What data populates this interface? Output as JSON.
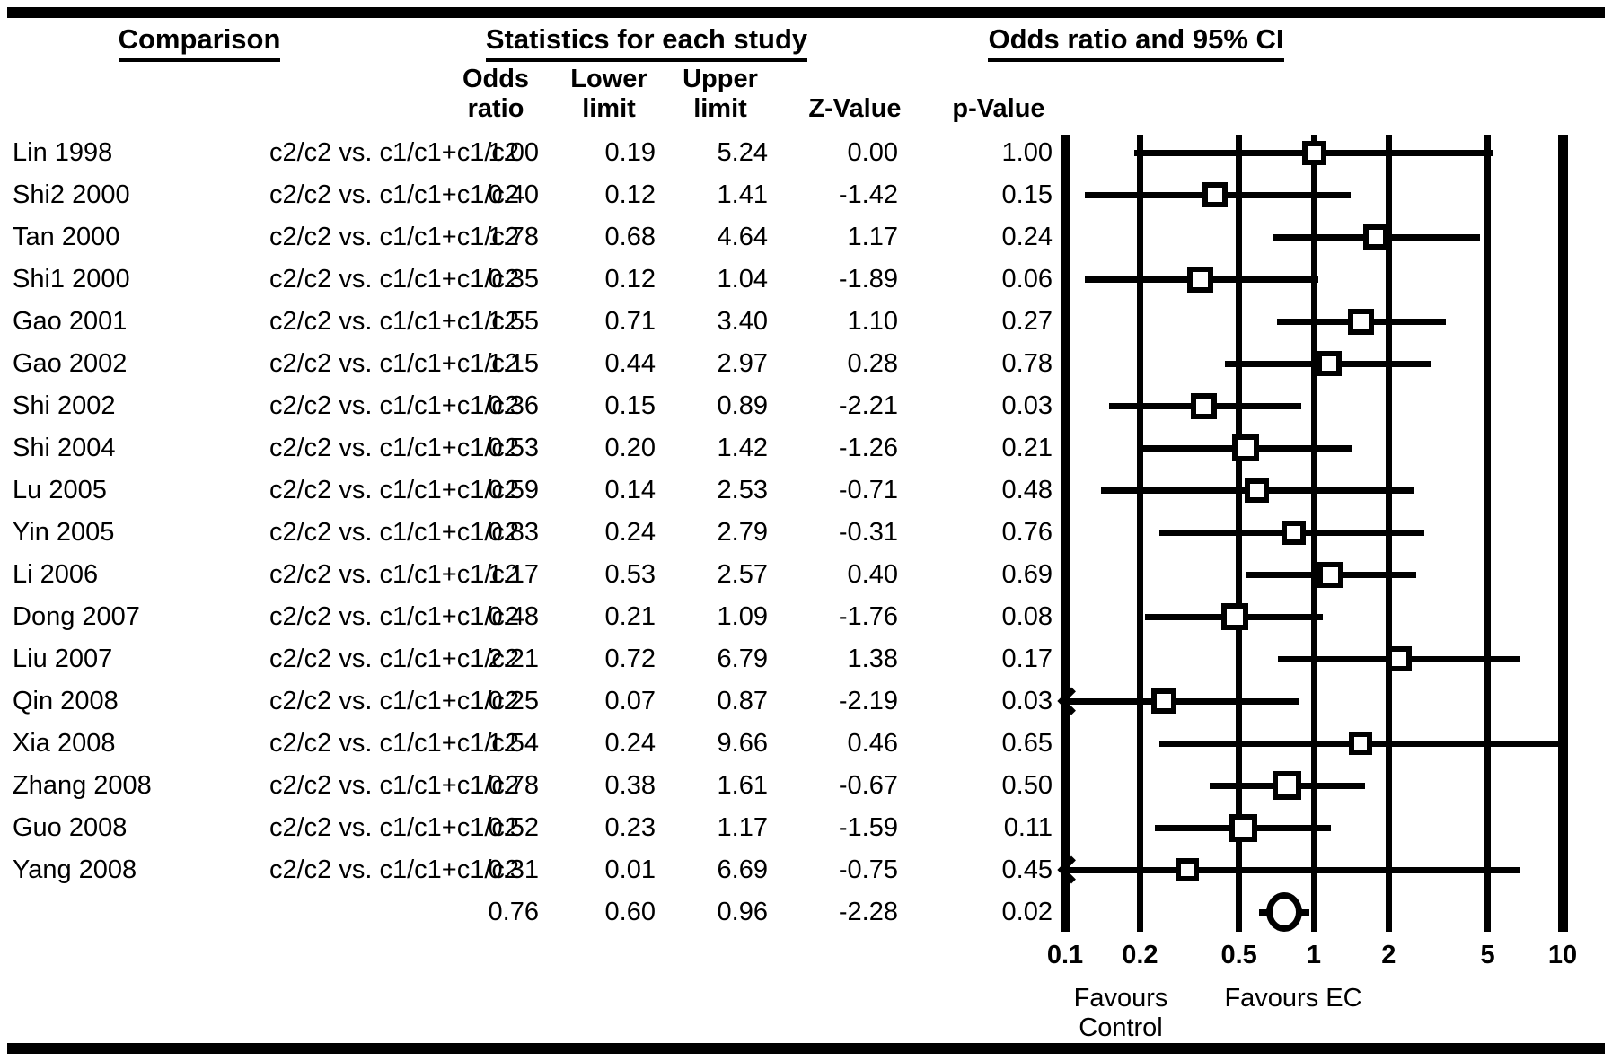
{
  "header": {
    "comparison_title": "Comparison",
    "statistics_title": "Statistics for each study",
    "plot_title": "Odds ratio and 95% CI",
    "columns": {
      "odds_l1": "Odds",
      "odds_l2": "ratio",
      "lower_l1": "Lower",
      "lower_l2": "limit",
      "upper_l1": "Upper",
      "upper_l2": "limit",
      "z": "Z-Value",
      "p": "p-Value"
    }
  },
  "chart_data": {
    "type": "forest",
    "x_axis": {
      "scale": "log10",
      "range": [
        0.1,
        10
      ],
      "tick_labels": [
        "0.1",
        "0.2",
        "0.5",
        "1",
        "2",
        "5",
        "10"
      ]
    },
    "studies": [
      {
        "label": "Lin 1998",
        "comparison": "c2/c2 vs. c1/c1+c1/c2",
        "or": "1.00",
        "lower": "0.19",
        "upper": "5.24",
        "z": "0.00",
        "p": "1.00",
        "marker_size": 27
      },
      {
        "label": "Shi2 2000",
        "comparison": "c2/c2 vs. c1/c1+c1/c2",
        "or": "0.40",
        "lower": "0.12",
        "upper": "1.41",
        "z": "-1.42",
        "p": "0.15",
        "marker_size": 28
      },
      {
        "label": "Tan 2000",
        "comparison": "c2/c2 vs. c1/c1+c1/c2",
        "or": "1.78",
        "lower": "0.68",
        "upper": "4.64",
        "z": "1.17",
        "p": "0.24",
        "marker_size": 28
      },
      {
        "label": "Shi1 2000",
        "comparison": "c2/c2 vs. c1/c1+c1/c2",
        "or": "0.35",
        "lower": "0.12",
        "upper": "1.04",
        "z": "-1.89",
        "p": "0.06",
        "marker_size": 29
      },
      {
        "label": "Gao 2001",
        "comparison": "c2/c2 vs. c1/c1+c1/c2",
        "or": "1.55",
        "lower": "0.71",
        "upper": "3.40",
        "z": "1.10",
        "p": "0.27",
        "marker_size": 29
      },
      {
        "label": "Gao 2002",
        "comparison": "c2/c2 vs. c1/c1+c1/c2",
        "or": "1.15",
        "lower": "0.44",
        "upper": "2.97",
        "z": "0.28",
        "p": "0.78",
        "marker_size": 28
      },
      {
        "label": "Shi 2002",
        "comparison": "c2/c2 vs. c1/c1+c1/c2",
        "or": "0.36",
        "lower": "0.15",
        "upper": "0.89",
        "z": "-2.21",
        "p": "0.03",
        "marker_size": 29
      },
      {
        "label": "Shi 2004",
        "comparison": "c2/c2 vs. c1/c1+c1/c2",
        "or": "0.53",
        "lower": "0.20",
        "upper": "1.42",
        "z": "-1.26",
        "p": "0.21",
        "marker_size": 30
      },
      {
        "label": "Lu 2005",
        "comparison": "c2/c2 vs. c1/c1+c1/c2",
        "or": "0.59",
        "lower": "0.14",
        "upper": "2.53",
        "z": "-0.71",
        "p": "0.48",
        "marker_size": 27
      },
      {
        "label": "Yin 2005",
        "comparison": "c2/c2 vs. c1/c1+c1/c2",
        "or": "0.83",
        "lower": "0.24",
        "upper": "2.79",
        "z": "-0.31",
        "p": "0.76",
        "marker_size": 27
      },
      {
        "label": "Li 2006",
        "comparison": "c2/c2 vs. c1/c1+c1/c2",
        "or": "1.17",
        "lower": "0.53",
        "upper": "2.57",
        "z": "0.40",
        "p": "0.69",
        "marker_size": 29
      },
      {
        "label": "Dong 2007",
        "comparison": "c2/c2 vs. c1/c1+c1/c2",
        "or": "0.48",
        "lower": "0.21",
        "upper": "1.09",
        "z": "-1.76",
        "p": "0.08",
        "marker_size": 30
      },
      {
        "label": "Liu 2007",
        "comparison": "c2/c2 vs. c1/c1+c1/c2",
        "or": "2.21",
        "lower": "0.72",
        "upper": "6.79",
        "z": "1.38",
        "p": "0.17",
        "marker_size": 28
      },
      {
        "label": "Qin 2008",
        "comparison": "c2/c2 vs. c1/c1+c1/c2",
        "or": "0.25",
        "lower": "0.07",
        "upper": "0.87",
        "z": "-2.19",
        "p": "0.03",
        "marker_size": 28
      },
      {
        "label": "Xia 2008",
        "comparison": "c2/c2 vs. c1/c1+c1/c2",
        "or": "1.54",
        "lower": "0.24",
        "upper": "9.66",
        "z": "0.46",
        "p": "0.65",
        "marker_size": 26
      },
      {
        "label": "Zhang 2008",
        "comparison": "c2/c2 vs. c1/c1+c1/c2",
        "or": "0.78",
        "lower": "0.38",
        "upper": "1.61",
        "z": "-0.67",
        "p": "0.50",
        "marker_size": 32
      },
      {
        "label": "Guo 2008",
        "comparison": "c2/c2 vs. c1/c1+c1/c2",
        "or": "0.52",
        "lower": "0.23",
        "upper": "1.17",
        "z": "-1.59",
        "p": "0.11",
        "marker_size": 31
      },
      {
        "label": "Yang 2008",
        "comparison": "c2/c2 vs. c1/c1+c1/c2",
        "or": "0.31",
        "lower": "0.01",
        "upper": "6.69",
        "z": "-0.75",
        "p": "0.45",
        "marker_size": 26
      }
    ],
    "summary": {
      "or": "0.76",
      "lower": "0.60",
      "upper": "0.96",
      "z": "-2.28",
      "p": "0.02",
      "marker": "circle",
      "marker_size": 40
    },
    "footer": {
      "left_label": "Favours Control",
      "right_label": "Favours EC"
    },
    "colors": {
      "foreground": "#000000",
      "background": "#ffffff"
    }
  }
}
